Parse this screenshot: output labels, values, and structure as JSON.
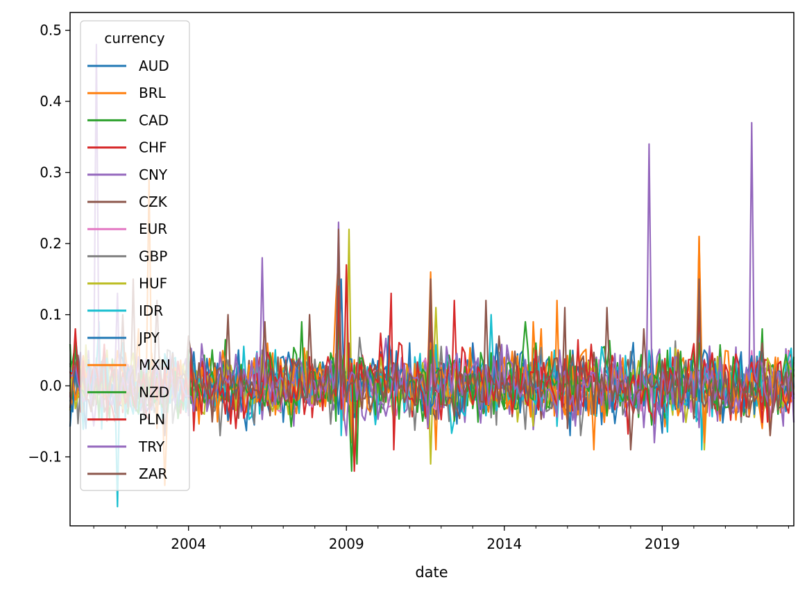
{
  "chart_data": {
    "type": "line",
    "title": "",
    "xlabel": "date",
    "ylabel": "",
    "x_range": [
      "2000-04",
      "2023-03"
    ],
    "ylim": [
      -0.197,
      0.525
    ],
    "x_ticks": [
      "2004",
      "2009",
      "2014",
      "2019"
    ],
    "y_ticks": [
      {
        "value": -0.1,
        "label": "−0.1"
      },
      {
        "value": 0.0,
        "label": "0.0"
      },
      {
        "value": 0.1,
        "label": "0.1"
      },
      {
        "value": 0.2,
        "label": "0.2"
      },
      {
        "value": 0.3,
        "label": "0.3"
      },
      {
        "value": 0.4,
        "label": "0.4"
      },
      {
        "value": 0.5,
        "label": "0.5"
      }
    ],
    "grid": false,
    "legend": {
      "title": "currency",
      "placement": "top-left"
    },
    "series": [
      {
        "name": "AUD",
        "color": "#1f77b4",
        "values": [
          [
            "2000-06",
            -0.02
          ],
          [
            "2000-09",
            -0.06
          ],
          [
            "2001-06",
            0.03
          ],
          [
            "2003-09",
            0.02
          ],
          [
            "2008-09",
            -0.03
          ],
          [
            "2008-11",
            0.15
          ],
          [
            "2009-01",
            -0.02
          ],
          [
            "2009-06",
            0.03
          ],
          [
            "2011-09",
            -0.04
          ],
          [
            "2015-01",
            -0.04
          ],
          [
            "2020-03",
            -0.05
          ],
          [
            "2022-09",
            -0.04
          ]
        ]
      },
      {
        "name": "BRL",
        "color": "#ff7f0e",
        "values": [
          [
            "2001-09",
            0.03
          ],
          [
            "2002-06",
            0.08
          ],
          [
            "2002-10",
            0.29
          ],
          [
            "2003-01",
            -0.06
          ],
          [
            "2003-04",
            -0.14
          ],
          [
            "2005-04",
            -0.05
          ],
          [
            "2008-09",
            0.12
          ],
          [
            "2008-10",
            0.18
          ],
          [
            "2008-12",
            -0.02
          ],
          [
            "2011-09",
            0.16
          ],
          [
            "2011-11",
            -0.09
          ],
          [
            "2015-03",
            0.08
          ],
          [
            "2015-09",
            0.12
          ],
          [
            "2016-01",
            -0.05
          ],
          [
            "2020-03",
            0.21
          ],
          [
            "2020-05",
            -0.06
          ],
          [
            "2022-06",
            -0.07
          ]
        ]
      },
      {
        "name": "CAD",
        "color": "#2ca02c",
        "values": [
          [
            "2000-06",
            0.06
          ],
          [
            "2005-09",
            0.03
          ],
          [
            "2006-06",
            -0.02
          ],
          [
            "2008-10",
            0.08
          ],
          [
            "2009-03",
            -0.05
          ],
          [
            "2011-09",
            0.04
          ],
          [
            "2014-09",
            0.03
          ],
          [
            "2015-01",
            0.06
          ],
          [
            "2020-03",
            0.06
          ],
          [
            "2022-03",
            -0.02
          ]
        ]
      },
      {
        "name": "CHF",
        "color": "#d62728",
        "values": [
          [
            "2000-09",
            0.02
          ],
          [
            "2001-09",
            -0.05
          ],
          [
            "2003-06",
            0.03
          ],
          [
            "2008-10",
            0.03
          ],
          [
            "2010-06",
            0.05
          ],
          [
            "2011-08",
            -0.06
          ],
          [
            "2011-09",
            0.12
          ],
          [
            "2015-01",
            -0.02
          ],
          [
            "2020-03",
            0.02
          ],
          [
            "2022-06",
            0.01
          ]
        ]
      },
      {
        "name": "CNY",
        "color": "#9467bd",
        "values": [
          [
            "2000-06",
            0.01
          ],
          [
            "2005-07",
            -0.02
          ],
          [
            "2010-06",
            0.0
          ],
          [
            "2015-08",
            0.03
          ],
          [
            "2016-01",
            0.01
          ],
          [
            "2019-08",
            0.03
          ],
          [
            "2022-09",
            0.02
          ]
        ]
      },
      {
        "name": "CZK",
        "color": "#8c564b",
        "values": [
          [
            "2000-06",
            0.02
          ],
          [
            "2002-04",
            0.15
          ],
          [
            "2002-06",
            -0.03
          ],
          [
            "2008-10",
            0.15
          ],
          [
            "2009-02",
            0.06
          ],
          [
            "2011-09",
            0.1
          ],
          [
            "2013-11",
            0.07
          ],
          [
            "2015-01",
            0.04
          ],
          [
            "2020-03",
            0.08
          ],
          [
            "2022-03",
            0.05
          ]
        ]
      },
      {
        "name": "EUR",
        "color": "#e377c2",
        "values": [
          [
            "2000-06",
            0.02
          ],
          [
            "2000-10",
            -0.01
          ],
          [
            "2001-06",
            0.05
          ],
          [
            "2008-10",
            0.05
          ],
          [
            "2010-05",
            -0.03
          ],
          [
            "2011-09",
            0.03
          ],
          [
            "2015-01",
            0.02
          ],
          [
            "2020-03",
            0.02
          ],
          [
            "2022-09",
            0.02
          ]
        ]
      },
      {
        "name": "GBP",
        "color": "#7f7f7f",
        "values": [
          [
            "2000-06",
            0.03
          ],
          [
            "2008-10",
            0.09
          ],
          [
            "2009-01",
            0.02
          ],
          [
            "2016-06",
            -0.07
          ],
          [
            "2016-10",
            -0.04
          ],
          [
            "2020-03",
            0.05
          ],
          [
            "2022-09",
            0.03
          ]
        ]
      },
      {
        "name": "HUF",
        "color": "#bcbd22",
        "values": [
          [
            "2001-06",
            0.05
          ],
          [
            "2008-10",
            0.16
          ],
          [
            "2009-02",
            0.22
          ],
          [
            "2009-04",
            -0.11
          ],
          [
            "2010-05",
            0.07
          ],
          [
            "2011-09",
            -0.11
          ],
          [
            "2011-11",
            0.11
          ],
          [
            "2015-01",
            0.05
          ],
          [
            "2020-03",
            0.11
          ],
          [
            "2020-05",
            -0.09
          ],
          [
            "2022-06",
            0.03
          ]
        ]
      },
      {
        "name": "IDR",
        "color": "#17becf",
        "values": [
          [
            "2000-06",
            0.07
          ],
          [
            "2001-03",
            0.09
          ],
          [
            "2001-10",
            -0.17
          ],
          [
            "2002-06",
            -0.04
          ],
          [
            "2005-08",
            0.05
          ],
          [
            "2008-10",
            0.15
          ],
          [
            "2008-11",
            -0.07
          ],
          [
            "2013-08",
            0.1
          ],
          [
            "2015-08",
            0.05
          ],
          [
            "2020-03",
            0.1
          ],
          [
            "2020-04",
            -0.09
          ],
          [
            "2022-10",
            0.02
          ]
        ]
      },
      {
        "name": "JPY",
        "color": "#1f77b4",
        "values": [
          [
            "2000-06",
            0.02
          ],
          [
            "2000-10",
            -0.06
          ],
          [
            "2004-01",
            0.04
          ],
          [
            "2008-10",
            -0.04
          ],
          [
            "2010-05",
            0.07
          ],
          [
            "2013-01",
            0.06
          ],
          [
            "2014-10",
            0.02
          ],
          [
            "2016-02",
            -0.07
          ],
          [
            "2022-10",
            0.02
          ]
        ]
      },
      {
        "name": "MXN",
        "color": "#ff7f0e",
        "values": [
          [
            "2000-06",
            -0.02
          ],
          [
            "2008-10",
            0.14
          ],
          [
            "2009-03",
            -0.08
          ],
          [
            "2011-09",
            0.06
          ],
          [
            "2014-12",
            0.09
          ],
          [
            "2016-11",
            -0.09
          ],
          [
            "2020-03",
            0.21
          ],
          [
            "2020-05",
            -0.08
          ],
          [
            "2022-03",
            -0.06
          ]
        ]
      },
      {
        "name": "NZD",
        "color": "#2ca02c",
        "values": [
          [
            "2000-06",
            0.06
          ],
          [
            "2003-03",
            -0.03
          ],
          [
            "2007-08",
            0.09
          ],
          [
            "2008-10",
            0.1
          ],
          [
            "2009-03",
            -0.12
          ],
          [
            "2009-05",
            -0.11
          ],
          [
            "2011-09",
            0.05
          ],
          [
            "2014-09",
            0.09
          ],
          [
            "2015-01",
            0.06
          ],
          [
            "2020-03",
            0.06
          ],
          [
            "2022-03",
            0.08
          ]
        ]
      },
      {
        "name": "PLN",
        "color": "#d62728",
        "values": [
          [
            "2000-06",
            0.08
          ],
          [
            "2001-06",
            -0.05
          ],
          [
            "2004-06",
            -0.04
          ],
          [
            "2005-07",
            -0.06
          ],
          [
            "2008-10",
            0.14
          ],
          [
            "2009-01",
            0.17
          ],
          [
            "2009-04",
            -0.12
          ],
          [
            "2010-06",
            0.13
          ],
          [
            "2010-07",
            -0.09
          ],
          [
            "2011-09",
            0.12
          ],
          [
            "2012-06",
            0.12
          ],
          [
            "2015-01",
            0.05
          ],
          [
            "2020-03",
            0.11
          ],
          [
            "2022-09",
            0.03
          ]
        ]
      },
      {
        "name": "TRY",
        "color": "#9467bd",
        "values": [
          [
            "2000-06",
            0.03
          ],
          [
            "2001-02",
            0.48
          ],
          [
            "2001-04",
            -0.03
          ],
          [
            "2001-10",
            0.13
          ],
          [
            "2006-05",
            0.18
          ],
          [
            "2008-10",
            0.23
          ],
          [
            "2009-01",
            -0.07
          ],
          [
            "2011-10",
            0.04
          ],
          [
            "2018-08",
            0.34
          ],
          [
            "2018-10",
            -0.08
          ],
          [
            "2021-11",
            0.37
          ],
          [
            "2022-09",
            0.02
          ]
        ]
      },
      {
        "name": "ZAR",
        "color": "#8c564b",
        "values": [
          [
            "2000-06",
            0.03
          ],
          [
            "2001-12",
            0.1
          ],
          [
            "2002-02",
            -0.03
          ],
          [
            "2003-01",
            0.12
          ],
          [
            "2003-04",
            -0.07
          ],
          [
            "2004-01",
            0.07
          ],
          [
            "2005-04",
            0.1
          ],
          [
            "2006-06",
            0.09
          ],
          [
            "2007-11",
            0.1
          ],
          [
            "2008-10",
            0.22
          ],
          [
            "2009-01",
            -0.02
          ],
          [
            "2011-09",
            0.15
          ],
          [
            "2013-06",
            0.12
          ],
          [
            "2015-12",
            0.11
          ],
          [
            "2016-01",
            -0.06
          ],
          [
            "2017-04",
            0.11
          ],
          [
            "2018-01",
            -0.09
          ],
          [
            "2018-06",
            0.08
          ],
          [
            "2020-03",
            0.15
          ],
          [
            "2022-03",
            0.06
          ],
          [
            "2022-06",
            -0.07
          ]
        ]
      }
    ]
  }
}
